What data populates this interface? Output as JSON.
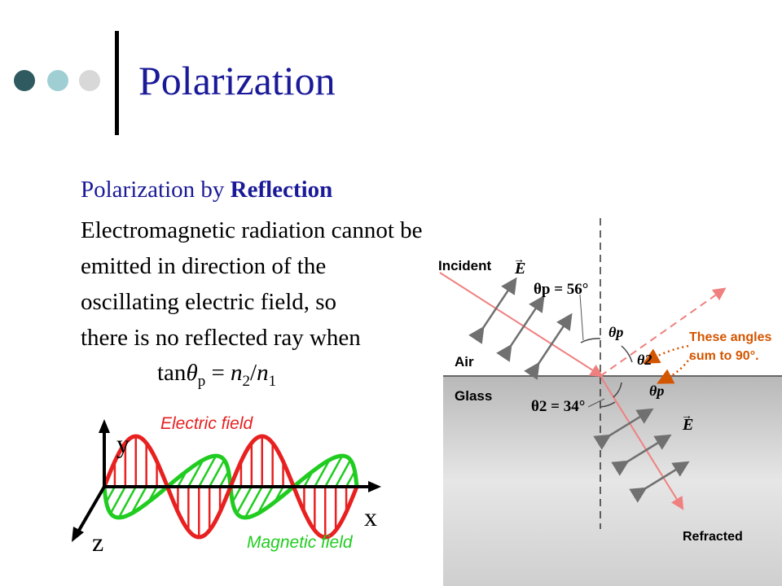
{
  "slide": {
    "title": "Polarization",
    "colors": {
      "title": "#1a1a99",
      "dot1": "#2f5a5f",
      "dot2": "#9fcfd3",
      "dot3": "#d8d8d8"
    }
  },
  "content": {
    "heading_prefix": "Polarization by ",
    "heading_bold": "Reflection",
    "lines": [
      "Electromagnetic radiation cannot be",
      "emitted in direction of the",
      "oscillating electric field, so",
      "there is no reflected ray when"
    ],
    "formula": {
      "fn": "tan",
      "theta": "θ",
      "theta_sub": "p",
      "eq": " = ",
      "n2": "n",
      "n2_sub": "2",
      "slash": "/",
      "n1": "n",
      "n1_sub": "1"
    }
  },
  "wave_figure": {
    "axis_y": "y",
    "axis_x": "x",
    "axis_z": "z",
    "electric_label": "Electric field",
    "magnetic_label": "Magnetic field",
    "colors": {
      "electric": "#e82020",
      "magnetic": "#20cc20",
      "axis": "#000000"
    }
  },
  "reflection_figure": {
    "incident": "Incident",
    "refracted": "Refracted",
    "air": "Air",
    "glass": "Glass",
    "e_vector": "E",
    "theta_p_eq": "θp = 56°",
    "theta2_eq": "θ2 = 34°",
    "theta_p": "θp",
    "theta_2": "θ2",
    "note_line1": "These angles",
    "note_line2": "sum to 90°.",
    "colors": {
      "ray": "#f08080",
      "note": "#d45500",
      "arrows": "#707070",
      "glass": "#c8c8c8"
    }
  }
}
